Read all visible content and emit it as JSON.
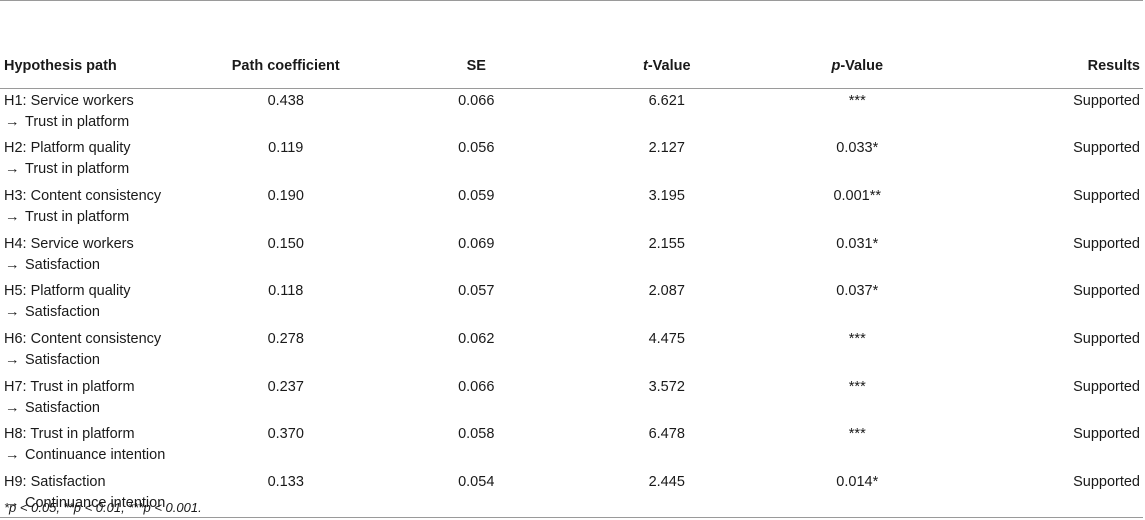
{
  "table": {
    "headers": {
      "path": "Hypothesis path",
      "coef": "Path coefficient",
      "se": "SE",
      "t_italic": "t",
      "t_rest": "-Value",
      "p_italic": "p",
      "p_rest": "-Value",
      "results": "Results"
    },
    "arrow": "→",
    "rows": [
      {
        "hyp": "H1: Service workers",
        "target": "Trust in platform",
        "coef": "0.438",
        "se": "0.066",
        "t": "6.621",
        "p": "***",
        "result": "Supported"
      },
      {
        "hyp": "H2: Platform quality",
        "target": "Trust in platform",
        "coef": "0.119",
        "se": "0.056",
        "t": "2.127",
        "p": "0.033*",
        "result": "Supported"
      },
      {
        "hyp": "H3: Content consistency",
        "target": "Trust in platform",
        "coef": "0.190",
        "se": "0.059",
        "t": "3.195",
        "p": "0.001**",
        "result": "Supported"
      },
      {
        "hyp": "H4: Service workers",
        "target": "Satisfaction",
        "coef": "0.150",
        "se": "0.069",
        "t": "2.155",
        "p": "0.031*",
        "result": "Supported"
      },
      {
        "hyp": "H5: Platform quality",
        "target": "Satisfaction",
        "coef": "0.118",
        "se": "0.057",
        "t": "2.087",
        "p": "0.037*",
        "result": "Supported"
      },
      {
        "hyp": "H6: Content consistency",
        "target": "Satisfaction",
        "coef": "0.278",
        "se": "0.062",
        "t": "4.475",
        "p": "***",
        "result": "Supported"
      },
      {
        "hyp": "H7: Trust in platform",
        "target": "Satisfaction",
        "coef": "0.237",
        "se": "0.066",
        "t": "3.572",
        "p": "***",
        "result": "Supported"
      },
      {
        "hyp": "H8: Trust in platform",
        "target": "Continuance intention",
        "coef": "0.370",
        "se": "0.058",
        "t": "6.478",
        "p": "***",
        "result": "Supported"
      },
      {
        "hyp": "H9: Satisfaction",
        "target": "Continuance intention",
        "coef": "0.133",
        "se": "0.054",
        "t": "2.445",
        "p": "0.014*",
        "result": "Supported"
      }
    ]
  },
  "footnote": "*p < 0.05, **p < 0.01, ***p < 0.001."
}
